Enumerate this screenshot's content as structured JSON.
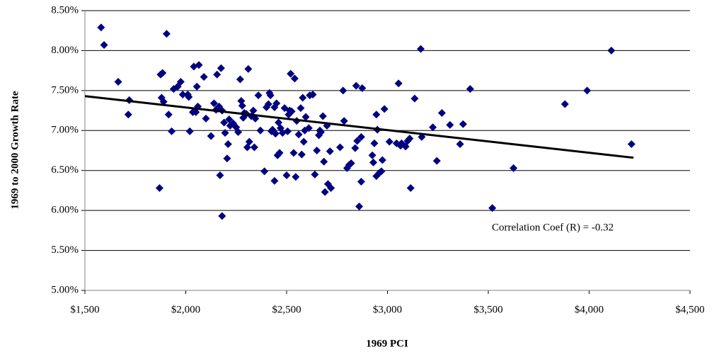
{
  "chart_data": {
    "type": "scatter",
    "x_label": "1969 PCI",
    "y_label": "1969 to 2000 Growth Rate",
    "annotation": "Correlation Coef (R) = -0.32",
    "color": "#000080",
    "grid": true,
    "xlim": [
      1500,
      4500
    ],
    "xticks": [
      {
        "value": 1500,
        "label": "$1,500"
      },
      {
        "value": 2000,
        "label": "$2,000"
      },
      {
        "value": 2500,
        "label": "$2,500"
      },
      {
        "value": 3000,
        "label": "$3,000"
      },
      {
        "value": 3500,
        "label": "$3,500"
      },
      {
        "value": 4000,
        "label": "$4,000"
      },
      {
        "value": 4500,
        "label": "$4,500"
      }
    ],
    "ylim": [
      5,
      8.5
    ],
    "yticks": [
      {
        "value": 5,
        "label": "5.00%"
      },
      {
        "value": 5.5,
        "label": "5.50%"
      },
      {
        "value": 6,
        "label": "6.00%"
      },
      {
        "value": 6.5,
        "label": "6.50%"
      },
      {
        "value": 7,
        "label": "7.00%"
      },
      {
        "value": 7.5,
        "label": "7.50%"
      },
      {
        "value": 8,
        "label": "8.00%"
      },
      {
        "value": 8.5,
        "label": "8.50%"
      }
    ],
    "trendline": {
      "x": [
        1500,
        4220
      ],
      "y": [
        7.43,
        6.66
      ]
    },
    "x": [
      1580,
      1595,
      1665,
      1720,
      1715,
      1870,
      1875,
      1885,
      1880,
      1890,
      1905,
      1915,
      1930,
      1940,
      1960,
      1975,
      1985,
      2010,
      2015,
      2020,
      2035,
      2040,
      2050,
      2055,
      2065,
      2060,
      2090,
      2100,
      2125,
      2140,
      2150,
      2155,
      2165,
      2170,
      2175,
      2180,
      2180,
      2190,
      2195,
      2205,
      2210,
      2215,
      2220,
      2235,
      2250,
      2260,
      2270,
      2275,
      2280,
      2285,
      2290,
      2300,
      2305,
      2310,
      2315,
      2325,
      2335,
      2340,
      2345,
      2360,
      2370,
      2390,
      2400,
      2410,
      2415,
      2420,
      2425,
      2430,
      2440,
      2440,
      2445,
      2450,
      2455,
      2460,
      2465,
      2470,
      2480,
      2490,
      2500,
      2505,
      2510,
      2515,
      2520,
      2525,
      2535,
      2540,
      2545,
      2550,
      2560,
      2570,
      2575,
      2580,
      2585,
      2590,
      2595,
      2610,
      2615,
      2630,
      2640,
      2650,
      2660,
      2665,
      2670,
      2680,
      2685,
      2690,
      2700,
      2705,
      2715,
      2720,
      2765,
      2780,
      2785,
      2800,
      2810,
      2820,
      2840,
      2845,
      2850,
      2860,
      2870,
      2875,
      2870,
      2925,
      2930,
      2935,
      2945,
      2950,
      2945,
      2960,
      2970,
      2975,
      2985,
      3010,
      3045,
      3055,
      3065,
      3070,
      3090,
      3100,
      3110,
      3115,
      3135,
      3165,
      3170,
      3225,
      3245,
      3270,
      3310,
      3360,
      3375,
      3410,
      3520,
      3625,
      3880,
      3990,
      4110,
      4210
    ],
    "values": [
      8.29,
      8.07,
      7.61,
      7.38,
      7.2,
      6.28,
      7.7,
      7.72,
      7.41,
      7.36,
      8.21,
      7.2,
      6.99,
      7.52,
      7.55,
      7.61,
      7.45,
      7.45,
      7.42,
      6.99,
      7.23,
      7.8,
      7.23,
      7.55,
      7.82,
      7.3,
      7.67,
      7.15,
      6.93,
      7.34,
      7.26,
      7.7,
      7.3,
      6.44,
      7.78,
      7.25,
      5.93,
      7.1,
      6.97,
      6.65,
      6.83,
      7.14,
      7.06,
      7.09,
      7.04,
      6.98,
      7.64,
      7.37,
      7.31,
      7.16,
      7.22,
      7.21,
      6.79,
      7.77,
      6.86,
      7.18,
      7.25,
      6.79,
      7.15,
      7.44,
      7.0,
      6.49,
      7.29,
      7.33,
      7.47,
      7.44,
      6.99,
      7.01,
      6.37,
      7.29,
      6.96,
      7.34,
      6.69,
      7.1,
      6.72,
      7.03,
      6.97,
      7.28,
      6.44,
      6.99,
      7.2,
      7.25,
      7.71,
      7.24,
      6.72,
      7.65,
      6.42,
      7.12,
      6.95,
      7.28,
      6.7,
      7.41,
      6.86,
      7.0,
      7.17,
      7.03,
      7.44,
      7.45,
      6.45,
      6.75,
      6.94,
      7.0,
      6.98,
      7.18,
      6.61,
      6.23,
      7.06,
      6.33,
      6.74,
      6.28,
      6.79,
      7.5,
      7.12,
      6.53,
      6.57,
      6.59,
      6.78,
      7.56,
      6.87,
      6.05,
      6.92,
      7.53,
      6.36,
      6.69,
      6.6,
      6.84,
      6.43,
      7.01,
      7.2,
      6.47,
      6.49,
      6.63,
      7.27,
      6.86,
      6.84,
      7.59,
      6.81,
      6.84,
      6.8,
      6.87,
      6.9,
      6.28,
      7.4,
      8.02,
      6.92,
      7.04,
      6.62,
      7.22,
      7.07,
      6.83,
      7.08,
      7.52,
      6.03,
      6.53,
      7.33,
      7.5,
      8.0,
      6.83
    ]
  }
}
